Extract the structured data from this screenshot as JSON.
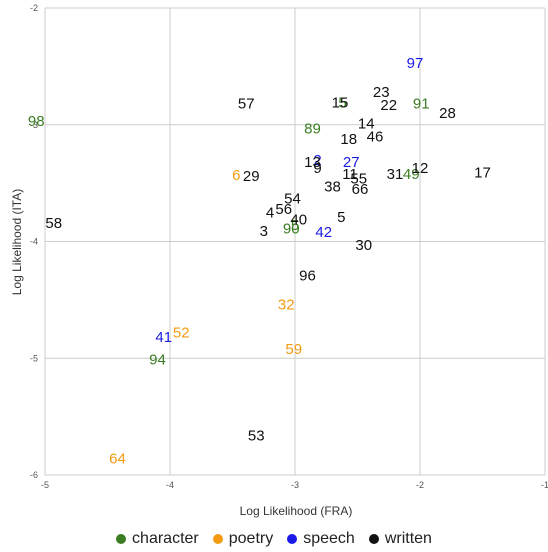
{
  "chart_data": {
    "type": "scatter",
    "title": "",
    "xlabel": "Log Likelihood (FRA)",
    "ylabel": "Log Likelihood (ITA)",
    "xlim": [
      -5,
      -1
    ],
    "ylim": [
      -6,
      -2
    ],
    "x_ticks": [
      "-5",
      "-4",
      "-3",
      "-2",
      "-1"
    ],
    "y_ticks": [
      "-2",
      "-3",
      "-4",
      "-5",
      "-6"
    ],
    "grid": true,
    "legend_position": "bottom",
    "marker": "text-label",
    "colors": {
      "character": "#3a7d22",
      "poetry": "#f39c12",
      "speech": "#1a1ae6",
      "written": "#111111"
    },
    "series": [
      {
        "name": "character",
        "points": [
          {
            "label": "98",
            "x": -5.07,
            "y": -2.97
          },
          {
            "label": "89",
            "x": -2.86,
            "y": -3.03
          },
          {
            "label": "91",
            "x": -1.99,
            "y": -2.82
          },
          {
            "label": "49",
            "x": -2.07,
            "y": -3.42
          },
          {
            "label": "90",
            "x": -3.03,
            "y": -3.89
          },
          {
            "label": "94",
            "x": -4.1,
            "y": -5.01
          },
          {
            "label": "5",
            "x": -2.62,
            "y": -2.81
          },
          {
            "label": "5",
            "x": -3.0,
            "y": -3.86
          }
        ]
      },
      {
        "name": "poetry",
        "points": [
          {
            "label": "6",
            "x": -3.47,
            "y": -3.43
          },
          {
            "label": "32",
            "x": -3.07,
            "y": -4.54
          },
          {
            "label": "52",
            "x": -3.91,
            "y": -4.78
          },
          {
            "label": "59",
            "x": -3.01,
            "y": -4.92
          },
          {
            "label": "64",
            "x": -4.42,
            "y": -5.86
          }
        ]
      },
      {
        "name": "speech",
        "points": [
          {
            "label": "97",
            "x": -2.04,
            "y": -2.47
          },
          {
            "label": "27",
            "x": -2.55,
            "y": -3.32
          },
          {
            "label": "42",
            "x": -2.77,
            "y": -3.92
          },
          {
            "label": "41",
            "x": -4.05,
            "y": -4.82
          },
          {
            "label": "2",
            "x": -2.82,
            "y": -3.3
          }
        ]
      },
      {
        "name": "written",
        "points": [
          {
            "label": "58",
            "x": -4.93,
            "y": -3.84
          },
          {
            "label": "57",
            "x": -3.39,
            "y": -2.82
          },
          {
            "label": "15",
            "x": -2.64,
            "y": -2.81
          },
          {
            "label": "23",
            "x": -2.31,
            "y": -2.72
          },
          {
            "label": "22",
            "x": -2.25,
            "y": -2.83
          },
          {
            "label": "28",
            "x": -1.78,
            "y": -2.9
          },
          {
            "label": "14",
            "x": -2.43,
            "y": -2.99
          },
          {
            "label": "46",
            "x": -2.36,
            "y": -3.1
          },
          {
            "label": "18",
            "x": -2.57,
            "y": -3.12
          },
          {
            "label": "13",
            "x": -2.86,
            "y": -3.32
          },
          {
            "label": "9",
            "x": -2.82,
            "y": -3.37
          },
          {
            "label": "12",
            "x": -2.0,
            "y": -3.37
          },
          {
            "label": "17",
            "x": -1.5,
            "y": -3.41
          },
          {
            "label": "31",
            "x": -2.2,
            "y": -3.42
          },
          {
            "label": "11",
            "x": -2.56,
            "y": -3.42
          },
          {
            "label": "55",
            "x": -2.49,
            "y": -3.46
          },
          {
            "label": "66",
            "x": -2.48,
            "y": -3.55
          },
          {
            "label": "38",
            "x": -2.7,
            "y": -3.53
          },
          {
            "label": "29",
            "x": -3.35,
            "y": -3.44
          },
          {
            "label": "54",
            "x": -3.02,
            "y": -3.63
          },
          {
            "label": "56",
            "x": -3.09,
            "y": -3.72
          },
          {
            "label": "4",
            "x": -3.2,
            "y": -3.75
          },
          {
            "label": "40",
            "x": -2.97,
            "y": -3.81
          },
          {
            "label": "5",
            "x": -2.63,
            "y": -3.79
          },
          {
            "label": "3",
            "x": -3.25,
            "y": -3.91
          },
          {
            "label": "30",
            "x": -2.45,
            "y": -4.03
          },
          {
            "label": "96",
            "x": -2.9,
            "y": -4.29
          },
          {
            "label": "53",
            "x": -3.31,
            "y": -5.66
          }
        ]
      }
    ]
  }
}
